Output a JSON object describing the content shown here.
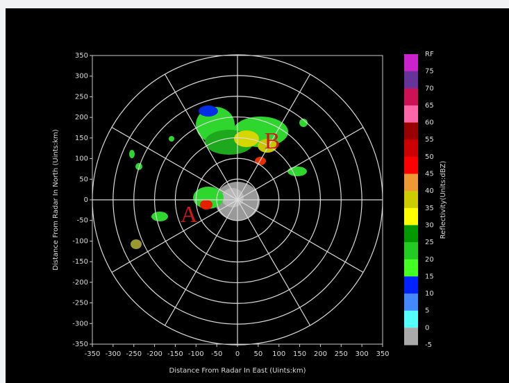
{
  "chart_data": {
    "type": "radar-ppi",
    "xlabel": "Distance From Radar In East (Uints:km)",
    "ylabel": "Distance From Radar In North (Uints:km)",
    "xlim": [
      -350,
      350
    ],
    "ylim": [
      -350,
      350
    ],
    "xticks": [
      -350,
      -300,
      -250,
      -200,
      -150,
      -100,
      -50,
      0,
      50,
      100,
      150,
      200,
      250,
      300,
      350
    ],
    "yticks": [
      350,
      300,
      250,
      200,
      150,
      100,
      50,
      0,
      -50,
      -100,
      -150,
      -200,
      -250,
      -300,
      -350
    ],
    "grid": true,
    "annotations": [
      "A",
      "B"
    ],
    "colorbar": {
      "label": "Reflectivity(Units:dBZ)",
      "ticks": [
        "RF",
        "75",
        "70",
        "65",
        "60",
        "55",
        "50",
        "45",
        "40",
        "35",
        "30",
        "25",
        "20",
        "15",
        "10",
        "5",
        "0",
        "-5"
      ],
      "colors": [
        "#cc22cc",
        "#663399",
        "#cc1155",
        "#ff66aa",
        "#990000",
        "#cc0000",
        "#ff0000",
        "#ee9933",
        "#cccc00",
        "#ffff00",
        "#009900",
        "#22cc22",
        "#44ff22",
        "#0022ff",
        "#4488ff",
        "#55ffff",
        "#aaaaaa"
      ]
    }
  }
}
